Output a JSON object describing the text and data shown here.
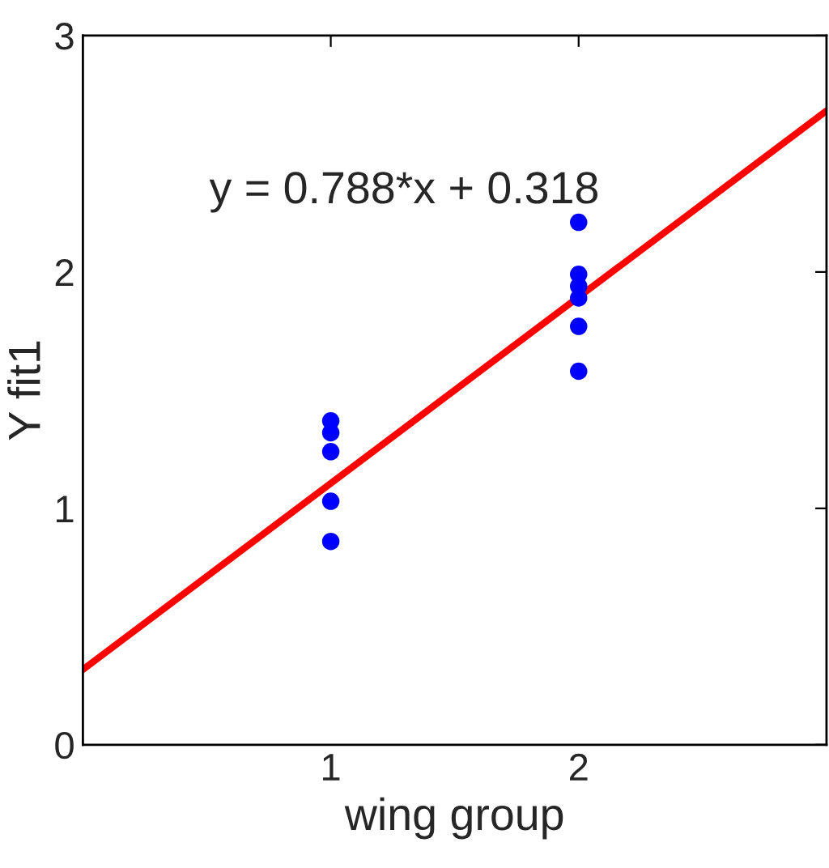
{
  "chart_data": {
    "type": "scatter",
    "xlabel": "wing group",
    "ylabel": "Y fit1",
    "xlim": [
      0,
      3
    ],
    "ylim": [
      0,
      3
    ],
    "xticks": [
      1,
      2
    ],
    "yticks": [
      0,
      1,
      2,
      3
    ],
    "grid": false,
    "annotations": [
      "y = 0.788*x + 0.318"
    ],
    "series": [
      {
        "marker": "circle",
        "color": "#0000ff",
        "x": [
          1,
          1,
          1,
          1,
          1,
          2,
          2,
          2,
          2,
          2,
          2
        ],
        "values": [
          1.37,
          1.32,
          1.24,
          1.03,
          0.86,
          2.21,
          1.99,
          1.94,
          1.89,
          1.77,
          1.58
        ]
      },
      {
        "type": "line",
        "marker": "none",
        "color": "#ff0000",
        "line_style": "solid",
        "x": [
          0,
          3
        ],
        "values": [
          0.318,
          2.682
        ]
      }
    ]
  }
}
